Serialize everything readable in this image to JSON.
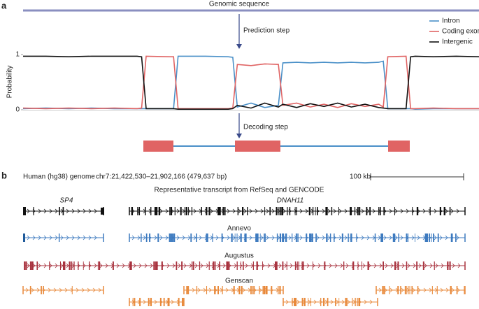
{
  "figure": {
    "panel_a": {
      "label": "a",
      "genomic_sequence": "Genomic sequence",
      "prediction_step": "Prediction step",
      "decoding_step": "Decoding step"
    },
    "panel_b": {
      "label": "b",
      "genome": "Human (hg38) genome",
      "region": "chr7:21,422,530–21,902,166 (479,637 bp)",
      "scale": "100 kb",
      "representative": "Representative transcript from RefSeq and GENCODE",
      "gene_1": "SP4",
      "gene_2": "DNAH11",
      "tracks": [
        "Annevo",
        "Augustus",
        "Genscan"
      ]
    }
  },
  "chart_data": {
    "type": "line",
    "y_label": "Probability",
    "x": [
      0,
      5,
      10,
      15,
      20,
      25,
      26,
      27,
      32,
      33,
      34,
      40,
      45,
      46,
      47,
      50,
      53,
      56,
      57,
      60,
      63,
      66,
      69,
      72,
      75,
      78,
      79,
      80,
      84,
      85,
      86,
      90,
      95,
      100
    ],
    "xlim": [
      0,
      100
    ],
    "ylim": [
      0,
      1
    ],
    "yticks": [
      0,
      1
    ],
    "legend": "upper right",
    "series": [
      {
        "name": "Intron",
        "color": "#4a90c8",
        "values": [
          0.02,
          0.03,
          0.02,
          0.03,
          0.02,
          0.02,
          0.02,
          0.02,
          0.02,
          0.02,
          0.97,
          0.97,
          0.96,
          0.95,
          0.05,
          0.12,
          0.04,
          0.08,
          0.85,
          0.86,
          0.85,
          0.86,
          0.85,
          0.86,
          0.85,
          0.86,
          0.88,
          0.02,
          0.02,
          0.02,
          0.01,
          0.02,
          0.02,
          0.02
        ]
      },
      {
        "name": "Coding exon",
        "color": "#e06464",
        "values": [
          0.03,
          0.02,
          0.03,
          0.02,
          0.03,
          0.02,
          0.03,
          0.97,
          0.96,
          0.96,
          0.02,
          0.02,
          0.02,
          0.03,
          0.82,
          0.8,
          0.83,
          0.82,
          0.08,
          0.12,
          0.05,
          0.1,
          0.04,
          0.11,
          0.06,
          0.1,
          0.05,
          0.96,
          0.97,
          0.02,
          0.02,
          0.03,
          0.02,
          0.02
        ]
      },
      {
        "name": "Intergenic",
        "color": "#111111",
        "values": [
          0.97,
          0.97,
          0.96,
          0.97,
          0.97,
          0.97,
          0.96,
          0.02,
          0.02,
          0.02,
          0.01,
          0.01,
          0.01,
          0.02,
          0.08,
          0.03,
          0.12,
          0.05,
          0.1,
          0.04,
          0.11,
          0.06,
          0.12,
          0.05,
          0.1,
          0.04,
          0.03,
          0.02,
          0.02,
          0.96,
          0.97,
          0.96,
          0.97,
          0.96
        ]
      }
    ]
  }
}
